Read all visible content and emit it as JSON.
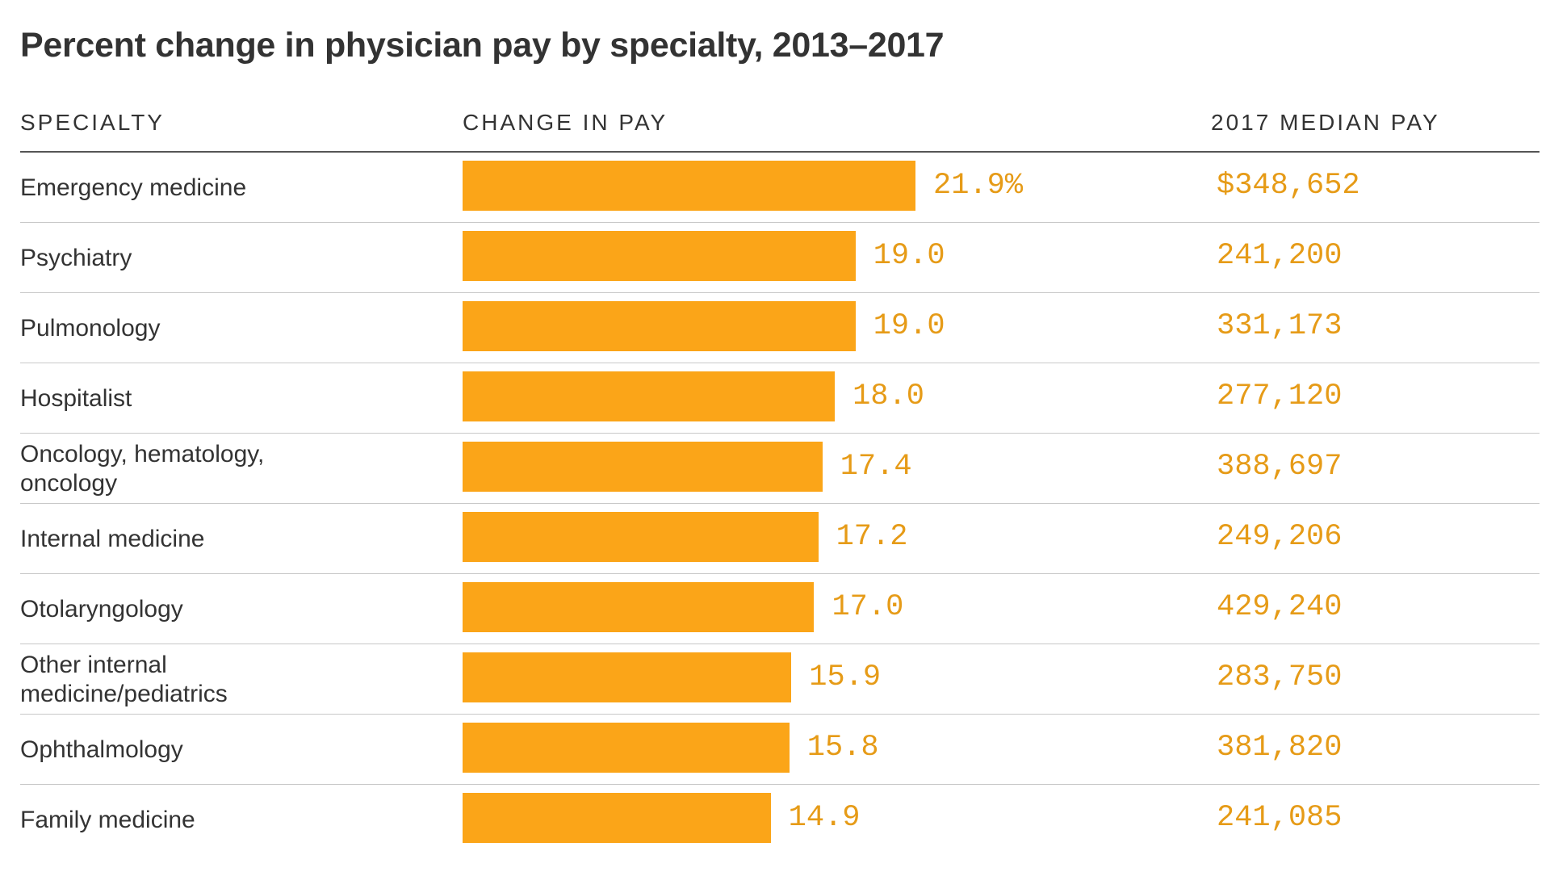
{
  "chart_data": {
    "type": "bar",
    "orientation": "horizontal",
    "title": "Percent change in physician pay by specialty, 2013–2017",
    "columns": [
      "SPECIALTY",
      "CHANGE IN PAY",
      "2017 MEDIAN PAY"
    ],
    "categories": [
      "Emergency medicine",
      "Psychiatry",
      "Pulmonology",
      "Hospitalist",
      "Oncology, hematology, oncology",
      "Internal medicine",
      "Otolaryngology",
      "Other internal medicine/pediatrics",
      "Ophthalmology",
      "Family medicine"
    ],
    "values": [
      21.9,
      19.0,
      19.0,
      18.0,
      17.4,
      17.2,
      17.0,
      15.9,
      15.8,
      14.9
    ],
    "value_labels": [
      "21.9%",
      "19.0",
      "19.0",
      "18.0",
      "17.4",
      "17.2",
      "17.0",
      "15.9",
      "15.8",
      "14.9"
    ],
    "median_pay_labels": [
      "$348,652",
      "241,200",
      "331,173",
      "277,120",
      "388,697",
      "249,206",
      "429,240",
      "283,750",
      "381,820",
      "241,085"
    ],
    "xlim": [
      0,
      21.9
    ],
    "grid": false,
    "legend": "none",
    "colors": {
      "bar": "#fba518",
      "value_text": "#e69b17",
      "text": "#333333",
      "rule": "#c8c8c8"
    }
  }
}
